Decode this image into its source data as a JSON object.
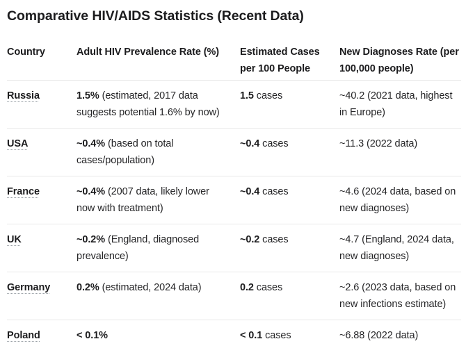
{
  "title": "Comparative HIV/AIDS Statistics (Recent Data)",
  "colors": {
    "background": "#ffffff",
    "heading_text": "#1c1c1e",
    "body_text": "#252527",
    "divider": "#e8e8e8",
    "country_underline": "#9aa0a6"
  },
  "table": {
    "columns": [
      "Country",
      "Adult HIV Prevalence Rate (%)",
      "Estimated Cases per 100 People",
      "New Diagnoses Rate (per 100,000 people)"
    ],
    "rows": [
      {
        "country": "Russia",
        "prevalence": {
          "value": "1.5%",
          "note": "(estimated, 2017 data suggests potential 1.6% by now)"
        },
        "cases": {
          "value": "1.5",
          "suffix": "cases"
        },
        "diagnoses": "~40.2 (2021 data, highest in Europe)"
      },
      {
        "country": "USA",
        "prevalence": {
          "value": "~0.4%",
          "note": "(based on total cases/population)"
        },
        "cases": {
          "value": "~0.4",
          "suffix": "cases"
        },
        "diagnoses": "~11.3 (2022 data)"
      },
      {
        "country": "France",
        "prevalence": {
          "value": "~0.4%",
          "note": "(2007 data, likely lower now with treatment)"
        },
        "cases": {
          "value": "~0.4",
          "suffix": "cases"
        },
        "diagnoses": "~4.6 (2024 data, based on new diagnoses)"
      },
      {
        "country": "UK",
        "prevalence": {
          "value": "~0.2%",
          "note": "(England, diagnosed prevalence)"
        },
        "cases": {
          "value": "~0.2",
          "suffix": "cases"
        },
        "diagnoses": "~4.7 (England, 2024 data, new diagnoses)"
      },
      {
        "country": "Germany",
        "prevalence": {
          "value": "0.2%",
          "note": "(estimated, 2024 data)"
        },
        "cases": {
          "value": "0.2",
          "suffix": "cases"
        },
        "diagnoses": "~2.6 (2023 data, based on new infections estimate)"
      },
      {
        "country": "Poland",
        "prevalence": {
          "value": "< 0.1%",
          "note": ""
        },
        "cases": {
          "value": "< 0.1",
          "suffix": "cases"
        },
        "diagnoses": "~6.88 (2022 data)"
      }
    ]
  }
}
